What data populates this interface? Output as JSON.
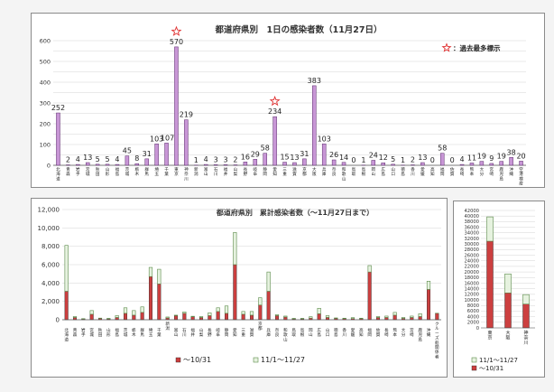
{
  "colors": {
    "daily_bar": "#c896d6",
    "daily_border": "#5a2a6a",
    "cum_red": "#cc3f3f",
    "cum_green": "#e6f2df",
    "cum_border": "#5b8a4a",
    "star": "#e03030",
    "grid": "#d4d4d4"
  },
  "chart_data": [
    {
      "type": "bar",
      "title": "都道府県別　1日の感染者数（11月27日）",
      "legend": "：過去最多標示",
      "ylim": [
        0,
        600
      ],
      "yticks": [
        0,
        50,
        100,
        150,
        200,
        250,
        300,
        350,
        400,
        450,
        500,
        550,
        600
      ],
      "categories": [
        "北海道",
        "青森",
        "岩手",
        "宮城",
        "秋田",
        "山形",
        "福島",
        "茨城",
        "栃木",
        "群馬",
        "埼玉",
        "千葉",
        "東京",
        "神奈川",
        "新潟",
        "富山",
        "石川",
        "福井",
        "山梨",
        "長野",
        "岐阜",
        "静岡",
        "愛知",
        "三重",
        "滋賀",
        "京都",
        "大阪",
        "兵庫",
        "奈良",
        "和歌山",
        "鳥取",
        "島根",
        "岡山",
        "広島",
        "山口",
        "徳島",
        "香川",
        "愛媛",
        "高知",
        "福岡",
        "佐賀",
        "長崎",
        "熊本",
        "大分",
        "宮崎",
        "鹿児島",
        "沖縄",
        "空港検疫"
      ],
      "values": [
        252,
        2,
        4,
        13,
        5,
        5,
        4,
        45,
        8,
        31,
        103,
        107,
        570,
        219,
        1,
        4,
        3,
        3,
        2,
        16,
        29,
        58,
        234,
        15,
        13,
        31,
        383,
        103,
        26,
        14,
        0,
        1,
        24,
        12,
        5,
        1,
        2,
        13,
        0,
        58,
        0,
        4,
        11,
        19,
        9,
        19,
        38,
        20
      ],
      "value_labels": [
        "252",
        "2",
        "4",
        "13",
        "5",
        "5",
        "4",
        "45",
        "8",
        "31",
        "103",
        "",
        "570",
        "219",
        "1",
        "4",
        "3",
        "3",
        "2",
        "16",
        "29",
        "58",
        "234",
        "15",
        "13",
        "31",
        "383",
        "103",
        "26",
        "14",
        "0",
        "1",
        "24",
        "12",
        "5",
        "1",
        "2",
        "13",
        "0",
        "58",
        "0",
        "4",
        "11",
        "19",
        "9",
        "19",
        "38",
        "20"
      ],
      "merged_label": "107",
      "record_high": [
        "東京",
        "愛知"
      ]
    },
    {
      "type": "bar",
      "title": "都道府県別　累計感染者数（～11月27日まで）",
      "ylim": [
        0,
        12000
      ],
      "yticks": [
        "0",
        "2,000",
        "4,000",
        "6,000",
        "8,000",
        "10,000",
        "12,000"
      ],
      "ytick_values": [
        0,
        2000,
        4000,
        6000,
        8000,
        10000,
        12000
      ],
      "categories": [
        "北海道",
        "青森",
        "岩手",
        "宮城",
        "秋田",
        "山形",
        "福島",
        "茨城",
        "栃木",
        "群馬",
        "埼玉",
        "千葉",
        "新潟",
        "富山",
        "石川",
        "福井",
        "山梨",
        "長野",
        "岐阜",
        "静岡",
        "愛知",
        "三重",
        "滋賀",
        "京都",
        "兵庫",
        "奈良",
        "和歌山",
        "鳥取",
        "島根",
        "岡山",
        "広島",
        "山口",
        "徳島",
        "香川",
        "愛媛",
        "高知",
        "福岡",
        "佐賀",
        "長崎",
        "熊本",
        "大分",
        "宮崎",
        "鹿児島",
        "沖縄",
        "クルーズ船関係者"
      ],
      "groups": [
        12,
        23,
        44
      ],
      "series": [
        {
          "name": "～10/31",
          "values": [
            3100,
            250,
            90,
            600,
            150,
            100,
            250,
            700,
            500,
            800,
            4700,
            3900,
            200,
            450,
            700,
            330,
            250,
            450,
            900,
            700,
            6000,
            600,
            500,
            1600,
            3100,
            450,
            300,
            100,
            100,
            180,
            650,
            250,
            150,
            120,
            130,
            120,
            5200,
            250,
            250,
            500,
            150,
            250,
            350,
            3300,
            700
          ]
        },
        {
          "name": "11/1～11/27",
          "values": [
            5000,
            100,
            30,
            400,
            30,
            50,
            200,
            600,
            500,
            600,
            1000,
            1600,
            100,
            50,
            150,
            50,
            100,
            300,
            400,
            800,
            3500,
            300,
            400,
            800,
            2100,
            100,
            100,
            50,
            50,
            150,
            600,
            200,
            50,
            50,
            100,
            50,
            700,
            100,
            150,
            300,
            100,
            150,
            300,
            900,
            10
          ]
        }
      ]
    },
    {
      "type": "bar",
      "ylim": [
        0,
        42000
      ],
      "yticks": [
        "0",
        "2000",
        "4000",
        "6000",
        "8000",
        "10000",
        "12000",
        "14000",
        "16000",
        "18000",
        "20000",
        "22000",
        "24000",
        "26000",
        "28000",
        "30000",
        "32000",
        "34000",
        "36000",
        "38000",
        "40000",
        "42000"
      ],
      "ytick_values": [
        0,
        2000,
        4000,
        6000,
        8000,
        10000,
        12000,
        14000,
        16000,
        18000,
        20000,
        22000,
        24000,
        26000,
        28000,
        30000,
        32000,
        34000,
        36000,
        38000,
        40000,
        42000
      ],
      "categories": [
        "東京",
        "大阪",
        "神奈川"
      ],
      "series": [
        {
          "name": "～10/31",
          "values": [
            31000,
            12500,
            8500
          ]
        },
        {
          "name": "11/1～11/27",
          "values": [
            8700,
            6800,
            3400
          ]
        }
      ],
      "legend": [
        "11/1～11/27",
        "～10/31"
      ]
    }
  ]
}
